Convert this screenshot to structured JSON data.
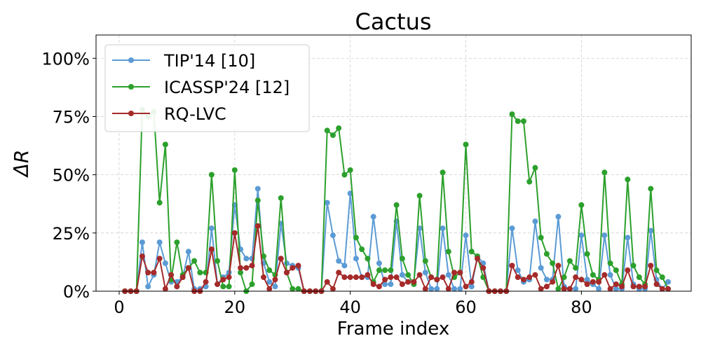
{
  "chart_data": {
    "type": "line",
    "title": "Cactus",
    "xlabel": "Frame index",
    "ylabel": "ΔR",
    "xlim": [
      -4,
      99
    ],
    "ylim": [
      0,
      110
    ],
    "x_ticks": [
      0,
      20,
      40,
      60,
      80
    ],
    "y_ticks": [
      0,
      25,
      50,
      75,
      100
    ],
    "y_tick_labels": [
      "0%",
      "25%",
      "50%",
      "75%",
      "100%"
    ],
    "grid": true,
    "legend_position": "top-left",
    "x": [
      1,
      2,
      3,
      4,
      5,
      6,
      7,
      8,
      9,
      10,
      11,
      12,
      13,
      14,
      15,
      16,
      17,
      18,
      19,
      20,
      21,
      22,
      23,
      24,
      25,
      26,
      27,
      28,
      29,
      30,
      31,
      32,
      33,
      34,
      35,
      36,
      37,
      38,
      39,
      40,
      41,
      42,
      43,
      44,
      45,
      46,
      47,
      48,
      49,
      50,
      51,
      52,
      53,
      54,
      55,
      56,
      57,
      58,
      59,
      60,
      61,
      62,
      63,
      64,
      65,
      66,
      67,
      68,
      69,
      70,
      71,
      72,
      73,
      74,
      75,
      76,
      77,
      78,
      79,
      80,
      81,
      82,
      83,
      84,
      85,
      86,
      87,
      88,
      89,
      90,
      91,
      92,
      93,
      94,
      95
    ],
    "series": [
      {
        "name": "TIP'14 [10]",
        "color": "#5b9bd5",
        "values": [
          0,
          0,
          0,
          21,
          2,
          7,
          21,
          12,
          4,
          4,
          6,
          17,
          1,
          1,
          2,
          27,
          3,
          6,
          8,
          37,
          18,
          14,
          14,
          44,
          12,
          4,
          2,
          29,
          12,
          11,
          10,
          0,
          0,
          0,
          0,
          38,
          24,
          13,
          11,
          42,
          14,
          6,
          6,
          32,
          12,
          3,
          3,
          30,
          7,
          4,
          4,
          27,
          8,
          1,
          1,
          27,
          7,
          1,
          1,
          24,
          2,
          15,
          12,
          0,
          0,
          0,
          0,
          27,
          9,
          4,
          5,
          30,
          10,
          5,
          5,
          32,
          2,
          1,
          1,
          24,
          5,
          3,
          1,
          24,
          7,
          1,
          1,
          23,
          3,
          1,
          1,
          26,
          5,
          1,
          4
        ]
      },
      {
        "name": "ICASSP'24 [12]",
        "color": "#2ca02c",
        "values": [
          0,
          0,
          0,
          78,
          75,
          77,
          38,
          63,
          5,
          21,
          7,
          10,
          13,
          8,
          8,
          50,
          13,
          2,
          2,
          52,
          8,
          0,
          3,
          39,
          15,
          9,
          7,
          40,
          8,
          1,
          1,
          0,
          0,
          0,
          0,
          69,
          67,
          70,
          50,
          52,
          23,
          18,
          14,
          4,
          9,
          9,
          9,
          37,
          14,
          7,
          3,
          41,
          13,
          6,
          5,
          51,
          17,
          6,
          8,
          63,
          17,
          15,
          6,
          0,
          0,
          0,
          0,
          76,
          73,
          73,
          47,
          53,
          23,
          16,
          12,
          1,
          6,
          13,
          10,
          37,
          16,
          7,
          5,
          51,
          12,
          9,
          3,
          48,
          11,
          6,
          3,
          44,
          9,
          6,
          1
        ]
      },
      {
        "name": "RQ-LVC",
        "color": "#a52a2a",
        "values": [
          0,
          0,
          0,
          15,
          8,
          8,
          14,
          1,
          7,
          2,
          6,
          10,
          0,
          0,
          4,
          18,
          3,
          5,
          6,
          25,
          10,
          10,
          11,
          28,
          6,
          1,
          5,
          14,
          8,
          10,
          11,
          0,
          0,
          0,
          0,
          4,
          1,
          8,
          6,
          6,
          6,
          6,
          7,
          3,
          2,
          5,
          6,
          6,
          3,
          4,
          4,
          7,
          1,
          6,
          5,
          6,
          1,
          8,
          8,
          2,
          4,
          14,
          10,
          0,
          0,
          0,
          0,
          11,
          6,
          5,
          6,
          7,
          1,
          2,
          4,
          11,
          1,
          1,
          6,
          5,
          3,
          4,
          4,
          7,
          1,
          3,
          2,
          9,
          2,
          2,
          2,
          11,
          3,
          1,
          1
        ]
      }
    ]
  }
}
